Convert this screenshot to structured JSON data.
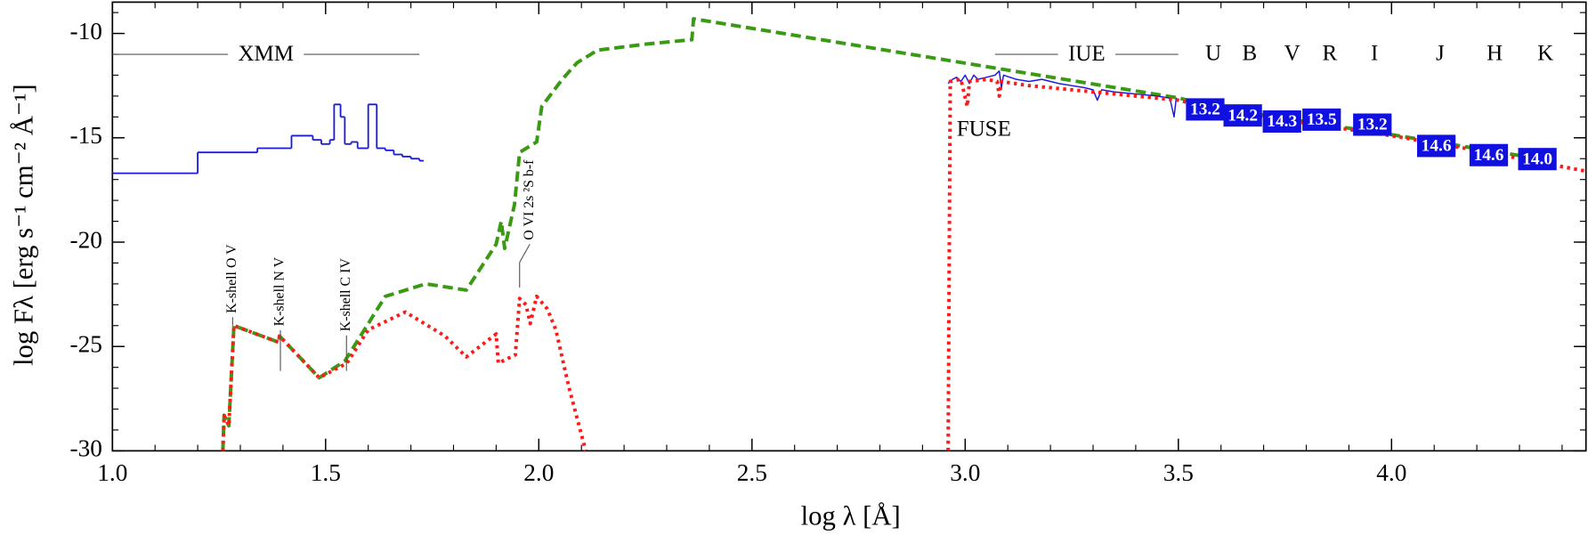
{
  "chart_data": {
    "type": "line",
    "xlabel": "log λ [Å]",
    "ylabel": "log Fλ [erg s⁻¹ cm⁻² Å⁻¹]",
    "xlim": [
      1.0,
      4.456
    ],
    "ylim": [
      -30,
      -8.5
    ],
    "xticks": [
      {
        "value": 1.0,
        "label": "1.0"
      },
      {
        "value": 1.5,
        "label": "1.5"
      },
      {
        "value": 2.0,
        "label": "2.0"
      },
      {
        "value": 2.5,
        "label": "2.5"
      },
      {
        "value": 3.0,
        "label": "3.0"
      },
      {
        "value": 3.5,
        "label": "3.5"
      },
      {
        "value": 4.0,
        "label": "4.0"
      }
    ],
    "yticks": [
      -30,
      -25,
      -20,
      -15,
      -10
    ],
    "x_minor_ticks": [
      1.1,
      1.2,
      1.3,
      1.4,
      1.6,
      1.7,
      1.8,
      1.9,
      2.1,
      2.2,
      2.3,
      2.4,
      2.6,
      2.7,
      2.8,
      2.9,
      3.1,
      3.2,
      3.3,
      3.4,
      3.6,
      3.7,
      3.8,
      3.9,
      4.1,
      4.2,
      4.3,
      4.4
    ],
    "y_minor_ticks": [
      -29,
      -28,
      -27,
      -26,
      -24,
      -23,
      -22,
      -21,
      -19,
      -18,
      -17,
      -16,
      -14,
      -13,
      -12,
      -11,
      -9
    ],
    "series": [
      {
        "color": "#1a1add",
        "linestyle": "solid",
        "step": true,
        "x": [
          1.0,
          1.2,
          1.34,
          1.42,
          1.47,
          1.49,
          1.51,
          1.52,
          1.535,
          1.545,
          1.56,
          1.575,
          1.6,
          1.62,
          1.64,
          1.66,
          1.68,
          1.7,
          1.72,
          1.73
        ],
        "values": [
          -16.7,
          -15.7,
          -15.5,
          -14.9,
          -15.1,
          -15.3,
          -15.1,
          -13.4,
          -14.0,
          -15.3,
          -15.2,
          -15.5,
          -13.4,
          -15.5,
          -15.6,
          -15.8,
          -15.9,
          -16.0,
          -16.1,
          -16.1
        ]
      },
      {
        "color": "#3a9a14",
        "linestyle": "dashed",
        "step": false,
        "x": [
          1.259,
          1.262,
          1.273,
          1.285,
          1.39,
          1.392,
          1.485,
          1.545,
          1.64,
          1.735,
          1.83,
          1.9,
          1.912,
          1.92,
          1.943,
          1.955,
          1.995,
          2.007,
          2.055,
          2.09,
          2.138,
          2.256,
          2.359,
          2.363,
          3.503,
          3.6,
          4.0,
          4.3
        ],
        "values": [
          -30,
          -28.3,
          -28.8,
          -24.0,
          -24.8,
          -24.5,
          -26.5,
          -25.7,
          -22.6,
          -22.0,
          -22.3,
          -20.1,
          -19.0,
          -20.3,
          -18.2,
          -15.7,
          -15.2,
          -13.5,
          -12.2,
          -11.4,
          -10.8,
          -10.5,
          -10.3,
          -9.3,
          -13.1,
          -13.6,
          -14.85,
          -15.85
        ]
      },
      {
        "color": "#1a1add",
        "linestyle": "thin",
        "step": false,
        "x": [
          2.96,
          2.97,
          2.98,
          2.99,
          3.0,
          3.01,
          3.02,
          3.03,
          3.05,
          3.07,
          3.08,
          3.085,
          3.09,
          3.12,
          3.15,
          3.18,
          3.2,
          3.22,
          3.25,
          3.28,
          3.3,
          3.31,
          3.32,
          3.35,
          3.4,
          3.45,
          3.48,
          3.49,
          3.495,
          3.5
        ],
        "values": [
          -12.4,
          -12.2,
          -12.1,
          -12.3,
          -12.0,
          -12.4,
          -12.0,
          -12.2,
          -12.1,
          -12.0,
          -11.8,
          -12.6,
          -12.0,
          -12.2,
          -12.3,
          -12.2,
          -12.3,
          -12.4,
          -12.5,
          -12.6,
          -12.7,
          -13.2,
          -12.7,
          -12.8,
          -12.9,
          -13.0,
          -13.1,
          -14.0,
          -13.1,
          -13.2
        ]
      },
      {
        "color": "#ff1a1a",
        "linestyle": "dotted",
        "step": false,
        "x": [
          1.259,
          1.262,
          1.273,
          1.285,
          1.39,
          1.392,
          1.485,
          1.55,
          1.6,
          1.687,
          1.78,
          1.83,
          1.9,
          1.905,
          1.945,
          1.955,
          1.97,
          1.98,
          1.995,
          2.02,
          2.04,
          2.07,
          2.11,
          2.5,
          2.96,
          2.965,
          2.99,
          3.005,
          3.01,
          3.05,
          3.075,
          3.08,
          3.085,
          3.15,
          3.2,
          3.25,
          3.3,
          3.4,
          3.5,
          3.6,
          3.8,
          4.0,
          4.2,
          4.456
        ],
        "values": [
          -30,
          -28.3,
          -28.8,
          -24.0,
          -24.8,
          -24.5,
          -26.5,
          -25.8,
          -24.2,
          -23.35,
          -24.5,
          -25.5,
          -24.4,
          -25.8,
          -25.4,
          -22.7,
          -23.0,
          -23.9,
          -22.6,
          -23.2,
          -24.2,
          -26.9,
          -30,
          null,
          -30,
          -12.3,
          -12.2,
          -13.5,
          -12.3,
          -12.2,
          -12.3,
          -13.0,
          -12.3,
          -12.5,
          -12.6,
          -12.7,
          -12.8,
          -13.0,
          -13.2,
          -13.7,
          -14.3,
          -14.9,
          -15.6,
          -16.6
        ]
      }
    ],
    "photometry": {
      "color": "#1010e0",
      "x": [
        3.563,
        3.651,
        3.743,
        3.836,
        3.955,
        4.105,
        4.228,
        4.342
      ],
      "values": [
        -13.64,
        -13.93,
        -14.22,
        -14.13,
        -14.37,
        -15.39,
        -15.83,
        -16.02
      ],
      "labels": [
        "13.2",
        "14.2",
        "14.3",
        "13.5",
        "13.2",
        "14.6",
        "14.6",
        "14.0"
      ]
    },
    "bands": {
      "labels": [
        "U",
        "B",
        "V",
        "R",
        "I",
        "J",
        "H",
        "K"
      ],
      "x": [
        3.582,
        3.667,
        3.767,
        3.855,
        3.96,
        4.114,
        4.242,
        4.361
      ]
    },
    "ranges": [
      {
        "text": "XMM",
        "x": [
          1.0,
          1.72
        ],
        "y": -11.0
      },
      {
        "text": "IUE",
        "x": [
          3.07,
          3.5
        ],
        "y": -11.0
      }
    ],
    "annotations": [
      {
        "text": "FUSE",
        "x": 2.98,
        "y": -14.66
      }
    ],
    "edges": [
      {
        "text": "K-shell O V",
        "x": 1.282,
        "y": [
          -24.0,
          -23.6
        ],
        "text_x": 1.282
      },
      {
        "text": "K-shell N V",
        "x": 1.394,
        "y": [
          -26.17,
          -24.22
        ],
        "text_x": 1.394
      },
      {
        "text": "K-shell C IV",
        "x": 1.549,
        "y": [
          -26.17,
          -24.47
        ],
        "text_x": 1.549
      },
      {
        "text": "O VI 2s ²S b-f",
        "x": 1.955,
        "y": [
          -22.18,
          -20.97
        ],
        "text_x": 1.979
      }
    ]
  }
}
